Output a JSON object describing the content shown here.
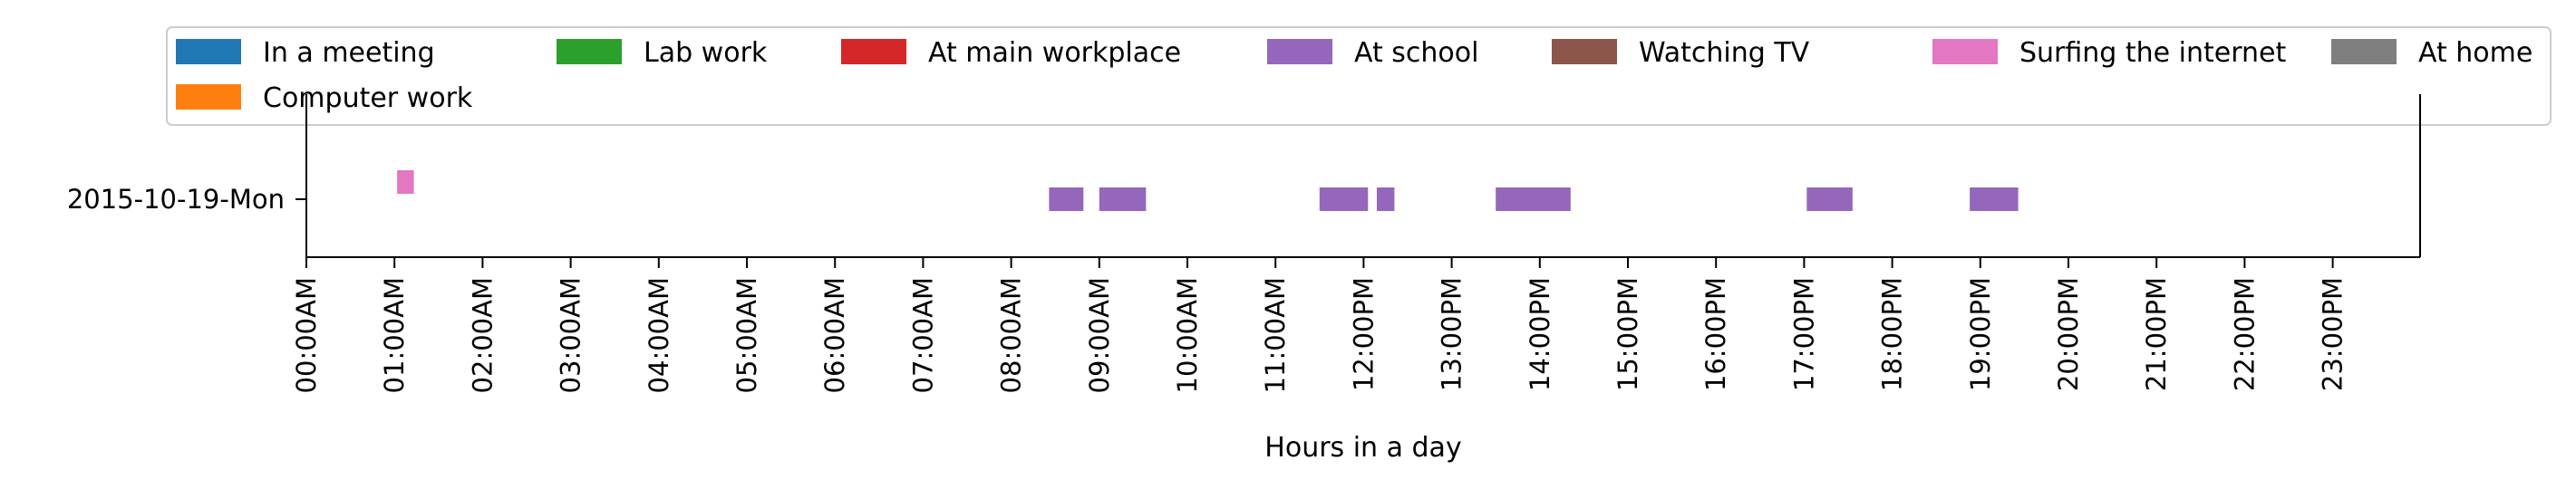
{
  "chart_data": {
    "type": "timeline",
    "title": "",
    "xlabel": "Hours in a day",
    "ylabel": "",
    "xlim": [
      0,
      24
    ],
    "x_unit": "hours",
    "x_ticks": [
      "00:00AM",
      "01:00AM",
      "02:00AM",
      "03:00AM",
      "04:00AM",
      "05:00AM",
      "06:00AM",
      "07:00AM",
      "08:00AM",
      "09:00AM",
      "10:00AM",
      "11:00AM",
      "12:00PM",
      "13:00PM",
      "14:00PM",
      "15:00PM",
      "16:00PM",
      "17:00PM",
      "18:00PM",
      "19:00PM",
      "20:00PM",
      "21:00PM",
      "22:00PM",
      "23:00PM"
    ],
    "rows": [
      "2015-10-19-Mon"
    ],
    "legend_position": "top",
    "legend": [
      {
        "label": "In a meeting",
        "color": "#1f77b4"
      },
      {
        "label": "Lab work",
        "color": "#2ca02c"
      },
      {
        "label": "At main workplace",
        "color": "#d62728"
      },
      {
        "label": "At school",
        "color": "#9467bd"
      },
      {
        "label": "Watching TV",
        "color": "#8c564b"
      },
      {
        "label": "Surfing the internet",
        "color": "#e377c2"
      },
      {
        "label": "At home",
        "color": "#7f7f7f"
      },
      {
        "label": "Computer work",
        "color": "#ff7f0e"
      }
    ],
    "series": [
      {
        "name": "Surfing the internet",
        "color": "#e377c2",
        "row": "2015-10-19-Mon",
        "lane_offset": 0.5,
        "intervals": [
          [
            1.03,
            1.22
          ]
        ]
      },
      {
        "name": "At school",
        "color": "#9467bd",
        "row": "2015-10-19-Mon",
        "lane_offset": 0,
        "intervals": [
          [
            8.43,
            8.82
          ],
          [
            9.0,
            9.53
          ],
          [
            11.5,
            12.05
          ],
          [
            12.15,
            12.35
          ],
          [
            13.5,
            14.35
          ],
          [
            17.03,
            17.55
          ],
          [
            18.88,
            19.43
          ]
        ]
      }
    ]
  }
}
